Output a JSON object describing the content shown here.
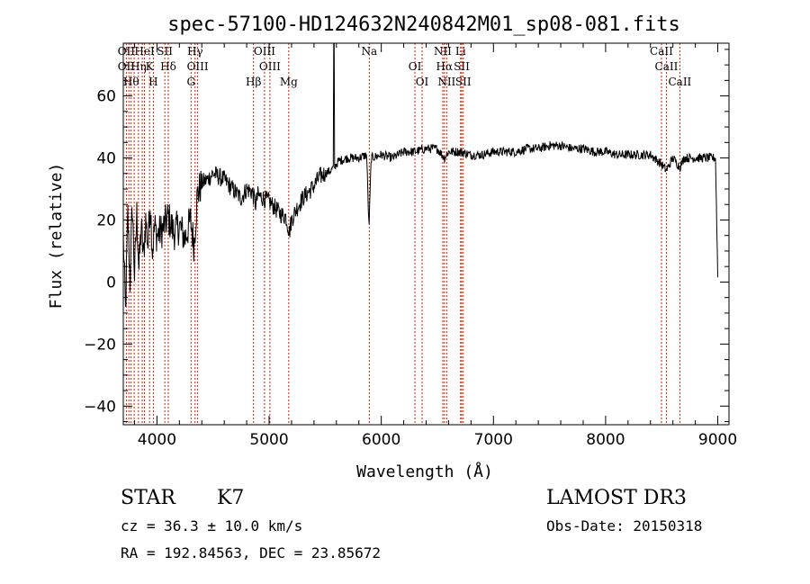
{
  "chart_data": {
    "type": "line",
    "title": "spec-57100-HD124632N240842M01_sp08-081.fits",
    "xlabel": "Wavelength (Å)",
    "ylabel": "Flux (relative)",
    "xlim": [
      3700,
      9100
    ],
    "ylim": [
      -46,
      77
    ],
    "xticks": [
      4000,
      5000,
      6000,
      7000,
      8000,
      9000
    ],
    "yticks": [
      -40,
      -20,
      0,
      20,
      40,
      60
    ],
    "grid": false,
    "line_color": "#000000",
    "marker_color": "#cc2200",
    "spectrum_keypoints": [
      [
        3700,
        15
      ],
      [
        3720,
        -10
      ],
      [
        3740,
        22
      ],
      [
        3760,
        0
      ],
      [
        3780,
        25
      ],
      [
        3800,
        2
      ],
      [
        3820,
        22
      ],
      [
        3840,
        4
      ],
      [
        3860,
        18
      ],
      [
        3880,
        8
      ],
      [
        3900,
        20
      ],
      [
        3920,
        12
      ],
      [
        3940,
        26
      ],
      [
        3960,
        10
      ],
      [
        3980,
        18
      ],
      [
        4000,
        15
      ],
      [
        4050,
        17
      ],
      [
        4100,
        21
      ],
      [
        4150,
        16
      ],
      [
        4200,
        18
      ],
      [
        4250,
        14
      ],
      [
        4300,
        20
      ],
      [
        4330,
        12
      ],
      [
        4360,
        28
      ],
      [
        4400,
        32
      ],
      [
        4450,
        33
      ],
      [
        4500,
        35
      ],
      [
        4550,
        34
      ],
      [
        4600,
        33
      ],
      [
        4650,
        31
      ],
      [
        4700,
        29
      ],
      [
        4750,
        27
      ],
      [
        4800,
        30
      ],
      [
        4850,
        29
      ],
      [
        4880,
        25
      ],
      [
        4900,
        28
      ],
      [
        4950,
        27
      ],
      [
        5000,
        26
      ],
      [
        5050,
        24
      ],
      [
        5100,
        22
      ],
      [
        5150,
        21
      ],
      [
        5180,
        16
      ],
      [
        5200,
        20
      ],
      [
        5250,
        24
      ],
      [
        5300,
        27
      ],
      [
        5350,
        29
      ],
      [
        5400,
        31
      ],
      [
        5450,
        34
      ],
      [
        5500,
        35
      ],
      [
        5550,
        36
      ],
      [
        5580,
        37
      ],
      [
        5620,
        39
      ],
      [
        5700,
        40
      ],
      [
        5800,
        40
      ],
      [
        5870,
        41
      ],
      [
        5890,
        17
      ],
      [
        5910,
        40
      ],
      [
        6000,
        41
      ],
      [
        6100,
        40
      ],
      [
        6200,
        42
      ],
      [
        6300,
        42
      ],
      [
        6400,
        43
      ],
      [
        6500,
        43
      ],
      [
        6563,
        40
      ],
      [
        6600,
        42
      ],
      [
        6700,
        42
      ],
      [
        6800,
        41
      ],
      [
        6900,
        41
      ],
      [
        7000,
        42
      ],
      [
        7100,
        42
      ],
      [
        7200,
        42
      ],
      [
        7300,
        43
      ],
      [
        7400,
        43
      ],
      [
        7500,
        44
      ],
      [
        7600,
        44
      ],
      [
        7700,
        43
      ],
      [
        7800,
        43
      ],
      [
        7900,
        42
      ],
      [
        8000,
        42
      ],
      [
        8100,
        41
      ],
      [
        8200,
        41
      ],
      [
        8300,
        41
      ],
      [
        8400,
        41
      ],
      [
        8498,
        38
      ],
      [
        8542,
        36
      ],
      [
        8600,
        40
      ],
      [
        8662,
        37
      ],
      [
        8700,
        40
      ],
      [
        8800,
        40
      ],
      [
        8900,
        40
      ],
      [
        8980,
        40
      ],
      [
        9000,
        2
      ]
    ],
    "spectrum_spikes": [
      [
        5577,
        78
      ],
      [
        5578,
        40
      ]
    ],
    "line_markers": [
      {
        "wave": 3727,
        "labels": [
          "OII",
          "OII"
        ]
      },
      {
        "wave": 3750,
        "labels": [
          ""
        ]
      },
      {
        "wave": 3770,
        "labels": [
          "Hθ"
        ]
      },
      {
        "wave": 3797,
        "labels": [
          ""
        ]
      },
      {
        "wave": 3835,
        "labels": [
          "Hη"
        ]
      },
      {
        "wave": 3869,
        "labels": [
          ""
        ]
      },
      {
        "wave": 3889,
        "labels": [
          "HeI"
        ]
      },
      {
        "wave": 3934,
        "labels": [
          "K"
        ]
      },
      {
        "wave": 3968,
        "labels": [
          "H"
        ]
      },
      {
        "wave": 4070,
        "labels": [
          "SII"
        ]
      },
      {
        "wave": 4101,
        "labels": [
          "Hδ"
        ]
      },
      {
        "wave": 4304,
        "labels": [
          "G"
        ]
      },
      {
        "wave": 4340,
        "labels": [
          "Hγ"
        ]
      },
      {
        "wave": 4363,
        "labels": [
          "OIII"
        ]
      },
      {
        "wave": 4861,
        "labels": [
          "Hβ"
        ]
      },
      {
        "wave": 4959,
        "labels": [
          "OIII"
        ]
      },
      {
        "wave": 5007,
        "labels": [
          "OIII"
        ]
      },
      {
        "wave": 5175,
        "labels": [
          "Mg"
        ]
      },
      {
        "wave": 5893,
        "labels": [
          "Na"
        ]
      },
      {
        "wave": 6300,
        "labels": [
          "OI"
        ]
      },
      {
        "wave": 6364,
        "labels": [
          "OI"
        ]
      },
      {
        "wave": 6548,
        "labels": [
          "NII"
        ]
      },
      {
        "wave": 6563,
        "labels": [
          "Hα"
        ]
      },
      {
        "wave": 6583,
        "labels": [
          "NII"
        ]
      },
      {
        "wave": 6707,
        "labels": [
          "Li"
        ]
      },
      {
        "wave": 6717,
        "labels": [
          "SII"
        ]
      },
      {
        "wave": 6731,
        "labels": [
          "SII"
        ]
      },
      {
        "wave": 8498,
        "labels": [
          "CaII"
        ]
      },
      {
        "wave": 8542,
        "labels": [
          "CaII"
        ]
      },
      {
        "wave": 8662,
        "labels": [
          "CaII"
        ]
      }
    ]
  },
  "info": {
    "classification": "STAR",
    "subclass": "K7",
    "survey": "LAMOST DR3",
    "velocity": "cz = 36.3 ± 10.0 km/s",
    "obs_date": "Obs-Date: 20150318",
    "coords": "RA = 192.84563, DEC =  23.85672"
  }
}
